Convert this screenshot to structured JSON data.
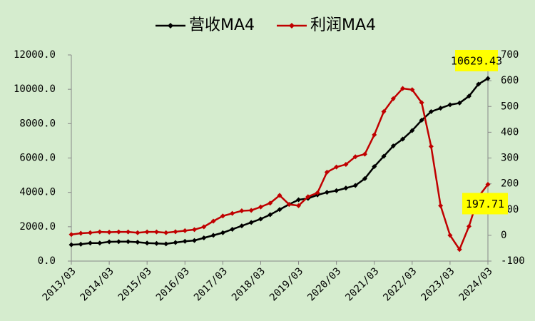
{
  "chart_data": {
    "type": "line",
    "categories": [
      "2013/03",
      null,
      null,
      null,
      "2014/03",
      null,
      null,
      null,
      "2015/03",
      null,
      null,
      null,
      "2016/03",
      null,
      null,
      null,
      "2017/03",
      null,
      null,
      null,
      "2018/03",
      null,
      null,
      null,
      "2019/03",
      null,
      null,
      null,
      "2020/03",
      null,
      null,
      null,
      "2021/03",
      null,
      null,
      null,
      "2022/03",
      null,
      null,
      null,
      "2023/03",
      null,
      null,
      null,
      "2024/03"
    ],
    "series": [
      {
        "name": "营收MA4",
        "color": "#000000",
        "axis": "y",
        "values": [
          950,
          980,
          1050,
          1050,
          1120,
          1130,
          1130,
          1100,
          1050,
          1030,
          1000,
          1080,
          1150,
          1200,
          1350,
          1500,
          1650,
          1850,
          2050,
          2250,
          2450,
          2700,
          3000,
          3300,
          3570,
          3650,
          3850,
          4000,
          4100,
          4250,
          4400,
          4800,
          5500,
          6100,
          6700,
          7100,
          7600,
          8200,
          8700,
          8900,
          9100,
          9200,
          9600,
          10300,
          10629.43
        ],
        "value_labels": [
          null,
          null,
          null,
          null,
          null,
          null,
          null,
          null,
          null,
          null,
          null,
          null,
          null,
          null,
          null,
          null,
          null,
          null,
          null,
          null,
          null,
          null,
          null,
          null,
          null,
          null,
          null,
          null,
          null,
          null,
          null,
          null,
          null,
          null,
          null,
          null,
          null,
          null,
          null,
          null,
          null,
          null,
          null,
          null,
          "10629.43"
        ]
      },
      {
        "name": "利润MA4",
        "color": "#c00000",
        "axis": "y2",
        "values": [
          3,
          8,
          10,
          13,
          12,
          13,
          13,
          10,
          13,
          13,
          10,
          14,
          18,
          22,
          33,
          55,
          75,
          85,
          95,
          97,
          110,
          125,
          155,
          120,
          115,
          150,
          165,
          245,
          265,
          275,
          305,
          315,
          390,
          480,
          530,
          570,
          565,
          515,
          345,
          115,
          0,
          -55,
          35,
          150,
          197.71
        ],
        "value_labels": [
          null,
          null,
          null,
          null,
          null,
          null,
          null,
          null,
          null,
          null,
          null,
          null,
          null,
          null,
          null,
          null,
          null,
          null,
          null,
          null,
          null,
          null,
          null,
          null,
          null,
          null,
          null,
          null,
          null,
          null,
          null,
          null,
          null,
          null,
          null,
          null,
          null,
          null,
          null,
          null,
          null,
          null,
          null,
          null,
          "197.71"
        ]
      }
    ],
    "ylim": [
      0,
      12000
    ],
    "yticks": [
      {
        "value": 0,
        "label": "0.0"
      },
      {
        "value": 2000,
        "label": "2000.0"
      },
      {
        "value": 4000,
        "label": "4000.0"
      },
      {
        "value": 6000,
        "label": "6000.0"
      },
      {
        "value": 8000,
        "label": "8000.0"
      },
      {
        "value": 10000,
        "label": "10000.0"
      },
      {
        "value": 12000,
        "label": "12000.0"
      }
    ],
    "y2lim": [
      -100,
      700
    ],
    "y2ticks": [
      -100,
      0,
      100,
      200,
      300,
      400,
      500,
      600,
      700
    ],
    "grid": false,
    "legend": "top"
  }
}
